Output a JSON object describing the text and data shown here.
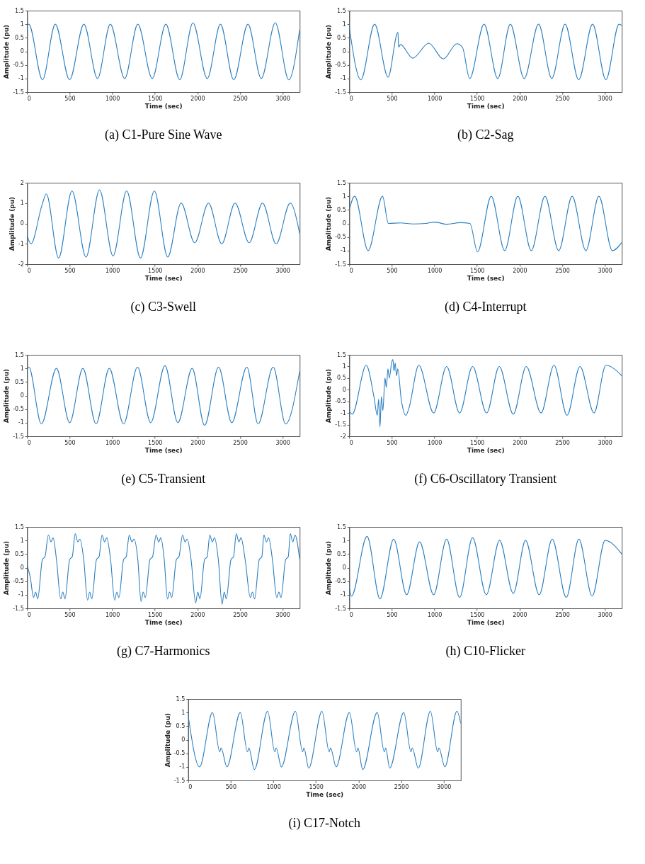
{
  "chart_data": [
    {
      "type": "line",
      "title": "(a) C1-Pure Sine Wave",
      "xlabel": "Time (sec)",
      "ylabel": "Amplitude (pu)",
      "xlim": [
        0,
        3200
      ],
      "xticks": [
        0,
        500,
        1000,
        1500,
        2000,
        2500,
        3000
      ],
      "ylim": [
        -1.5,
        1.5
      ],
      "yticks": [
        -1.5,
        -1,
        -0.5,
        0,
        0.5,
        1,
        1.5
      ],
      "series": [
        {
          "color": "#2a7fc0",
          "x": [
            0,
            20,
            181,
            331,
            499,
            667,
            827,
            977,
            1146,
            1300,
            1469,
            1629,
            1792,
            1947,
            2115,
            2270,
            2426,
            2593,
            2749,
            2914,
            3072,
            3200
          ],
          "values": [
            0.95,
            1.0,
            -1.05,
            1.0,
            -1.05,
            1.0,
            -1.0,
            1.0,
            -1.0,
            1.0,
            -1.0,
            1.0,
            -1.05,
            1.05,
            -1.0,
            1.0,
            -1.05,
            1.0,
            -1.0,
            1.05,
            -1.05,
            0.8
          ]
        }
      ]
    },
    {
      "type": "line",
      "title": "(b) C2-Sag",
      "xlabel": "Time (sec)",
      "ylabel": "Amplitude (pu)",
      "xlim": [
        0,
        3200
      ],
      "xticks": [
        0,
        500,
        1000,
        1500,
        2000,
        2500,
        3000
      ],
      "ylim": [
        -1.5,
        1.5
      ],
      "yticks": [
        -1.5,
        -1,
        -0.5,
        0,
        0.5,
        1,
        1.5
      ],
      "series": [
        {
          "color": "#2a7fc0",
          "x": [
            0,
            137,
            298,
            456,
            572,
            580,
            600,
            746,
            933,
            1104,
            1264,
            1329,
            1414,
            1583,
            1744,
            1891,
            2054,
            2223,
            2378,
            2534,
            2694,
            2857,
            3013,
            3168,
            3200
          ],
          "values": [
            0.9,
            -1.05,
            1.0,
            -0.95,
            0.7,
            0.15,
            0.25,
            -0.25,
            0.3,
            -0.28,
            0.28,
            0.15,
            -1.0,
            1.0,
            -1.0,
            1.0,
            -1.0,
            1.0,
            -1.0,
            1.0,
            -1.05,
            1.0,
            -1.05,
            1.0,
            0.95
          ]
        }
      ]
    },
    {
      "type": "line",
      "title": "(c) C3-Swell",
      "xlabel": "Time (sec)",
      "ylabel": "Amplitude (pu)",
      "xlim": [
        0,
        3200
      ],
      "xticks": [
        0,
        500,
        1000,
        1500,
        2000,
        2500,
        3000
      ],
      "ylim": [
        -2,
        2
      ],
      "yticks": [
        -2,
        -1,
        0,
        1,
        2
      ],
      "series": [
        {
          "color": "#2a7fc0",
          "x": [
            0,
            46,
            175,
            226,
            370,
            527,
            692,
            850,
            1009,
            1169,
            1331,
            1494,
            1651,
            1808,
            1968,
            2130,
            2285,
            2442,
            2607,
            2764,
            2924,
            3089,
            3200
          ],
          "values": [
            -0.6,
            -1.0,
            0.9,
            1.45,
            -1.7,
            1.6,
            -1.65,
            1.65,
            -1.6,
            1.6,
            -1.7,
            1.6,
            -1.65,
            1.0,
            -0.95,
            1.0,
            -1.0,
            1.0,
            -0.95,
            1.0,
            -1.0,
            1.0,
            -0.5
          ]
        }
      ]
    },
    {
      "type": "line",
      "title": "(d) C4-Interrupt",
      "xlabel": "Time (sec)",
      "ylabel": "Amplitude (pu)",
      "xlim": [
        0,
        3200
      ],
      "xticks": [
        0,
        500,
        1000,
        1500,
        2000,
        2500,
        3000
      ],
      "ylim": [
        -1.5,
        1.5
      ],
      "yticks": [
        -1.5,
        -1,
        -0.5,
        0,
        0.5,
        1,
        1.5
      ],
      "series": [
        {
          "color": "#2a7fc0",
          "x": [
            0,
            64,
            222,
            391,
            460,
            600,
            750,
            900,
            1000,
            1150,
            1300,
            1417,
            1506,
            1667,
            1825,
            1979,
            2137,
            2298,
            2459,
            2617,
            2778,
            2931,
            3089,
            3200
          ],
          "values": [
            0.5,
            1.0,
            -1.0,
            1.0,
            0.0,
            0.02,
            -0.02,
            0.0,
            0.05,
            -0.03,
            0.03,
            0.0,
            -1.05,
            1.0,
            -1.0,
            1.0,
            -1.0,
            1.0,
            -1.0,
            1.0,
            -1.0,
            1.0,
            -1.0,
            -0.7
          ]
        }
      ]
    },
    {
      "type": "line",
      "title": "(e) C5-Transient",
      "xlabel": "Time (sec)",
      "ylabel": "Amplitude (pu)",
      "xlim": [
        0,
        3200
      ],
      "xticks": [
        0,
        500,
        1000,
        1500,
        2000,
        2500,
        3000
      ],
      "ylim": [
        -1.5,
        1.5
      ],
      "yticks": [
        -1.5,
        -1,
        -0.5,
        0,
        0.5,
        1,
        1.5
      ],
      "series": [
        {
          "color": "#2a7fc0",
          "x": [
            0,
            20,
            168,
            345,
            500,
            655,
            810,
            965,
            1133,
            1296,
            1451,
            1619,
            1770,
            1938,
            2084,
            2248,
            2403,
            2580,
            2712,
            2889,
            3035,
            3200
          ],
          "values": [
            0.95,
            1.05,
            -1.05,
            1.0,
            -1.0,
            1.0,
            -1.05,
            1.0,
            -1.05,
            1.05,
            -1.0,
            1.1,
            -1.0,
            1.0,
            -1.1,
            1.05,
            -1.0,
            1.05,
            -1.05,
            1.05,
            -1.05,
            0.9
          ]
        }
      ]
    },
    {
      "type": "line",
      "title": "(f) C6-Oscillatory Transient",
      "xlabel": "Time (sec)",
      "ylabel": "Amplitude (pu)",
      "xlim": [
        0,
        3200
      ],
      "xticks": [
        0,
        500,
        1000,
        1500,
        2000,
        2500,
        3000
      ],
      "ylim": [
        -2,
        1.5
      ],
      "yticks": [
        -2,
        -1.5,
        -1,
        -0.5,
        0,
        0.5,
        1,
        1.5
      ],
      "series": [
        {
          "color": "#2a7fc0",
          "x": [
            0,
            35,
            200,
            290,
            330,
            345,
            361,
            378,
            395,
            420,
            435,
            455,
            470,
            500,
            513,
            525,
            540,
            555,
            570,
            610,
            665,
            700,
            817,
            991,
            1143,
            1296,
            1448,
            1613,
            1761,
            1926,
            2078,
            2252,
            2404,
            2557,
            2709,
            2874,
            3013,
            3200
          ],
          "values": [
            -0.9,
            -1.05,
            1.05,
            -0.3,
            -1.1,
            -0.4,
            -1.6,
            -0.3,
            -0.9,
            0.5,
            0.1,
            0.9,
            0.5,
            1.2,
            1.3,
            0.8,
            1.15,
            0.6,
            0.9,
            -0.4,
            -1.1,
            -0.8,
            1.05,
            -1.0,
            1.0,
            -1.0,
            1.0,
            -1.0,
            1.0,
            -1.05,
            1.0,
            -1.0,
            1.05,
            -1.1,
            1.0,
            -1.0,
            1.05,
            0.6
          ]
        }
      ]
    },
    {
      "type": "line",
      "title": "(g) C7-Harmonics",
      "xlabel": "Time (sec)",
      "ylabel": "Amplitude (pu)",
      "xlim": [
        0,
        3200
      ],
      "xticks": [
        0,
        500,
        1000,
        1500,
        2000,
        2500,
        3000
      ],
      "ylim": [
        -1.5,
        1.5
      ],
      "yticks": [
        -1.5,
        -1,
        -0.5,
        0,
        0.5,
        1,
        1.5
      ],
      "series": [
        {
          "color": "#2a7fc0",
          "x": [
            0,
            40,
            75,
            100,
            125,
            180,
            210,
            250,
            280,
            305,
            345,
            395,
            420,
            445,
            500,
            530,
            565,
            595,
            620,
            665,
            710,
            735,
            760,
            815,
            845,
            880,
            910,
            935,
            980,
            1028,
            1053,
            1078,
            1133,
            1163,
            1200,
            1230,
            1255,
            1300,
            1338,
            1363,
            1388,
            1443,
            1473,
            1515,
            1545,
            1570,
            1610,
            1648,
            1673,
            1698,
            1753,
            1783,
            1825,
            1855,
            1880,
            1925,
            1979,
            2004,
            2029,
            2084,
            2114,
            2145,
            2175,
            2200,
            2245,
            2289,
            2314,
            2339,
            2394,
            2424,
            2456,
            2486,
            2511,
            2560,
            2621,
            2646,
            2671,
            2726,
            2756,
            2780,
            2810,
            2835,
            2880,
            2931,
            2956,
            2981,
            3036,
            3066,
            3090,
            3120,
            3145,
            3200
          ],
          "values": [
            0.1,
            -0.4,
            -1.1,
            -0.9,
            -1.15,
            0.3,
            0.4,
            1.2,
            0.95,
            1.1,
            0.3,
            -1.15,
            -0.9,
            -1.15,
            0.3,
            0.4,
            1.25,
            0.95,
            1.05,
            0.3,
            -1.2,
            -0.9,
            -1.15,
            0.3,
            0.4,
            1.2,
            0.95,
            1.1,
            0.3,
            -1.2,
            -0.9,
            -1.1,
            0.3,
            0.4,
            1.2,
            0.95,
            1.05,
            0.3,
            -1.25,
            -0.9,
            -1.1,
            0.3,
            0.4,
            1.2,
            0.95,
            1.1,
            0.3,
            -1.15,
            -0.9,
            -1.1,
            0.3,
            0.4,
            1.2,
            0.95,
            1.05,
            0.3,
            -1.3,
            -0.9,
            -1.15,
            0.3,
            0.4,
            1.2,
            0.95,
            1.1,
            0.3,
            -1.35,
            -0.9,
            -1.15,
            0.3,
            0.4,
            1.25,
            0.95,
            1.1,
            0.3,
            -1.1,
            -0.9,
            -1.15,
            0.3,
            0.4,
            1.2,
            0.95,
            1.1,
            0.3,
            -1.1,
            -0.9,
            -1.1,
            0.3,
            0.4,
            1.25,
            0.95,
            1.2,
            0.3
          ]
        }
      ]
    },
    {
      "type": "line",
      "title": "(h) C10-Flicker",
      "xlabel": "Time (sec)",
      "ylabel": "Amplitude (pu)",
      "xlim": [
        0,
        3200
      ],
      "xticks": [
        0,
        500,
        1000,
        1500,
        2000,
        2500,
        3000
      ],
      "ylim": [
        -1.5,
        1.5
      ],
      "yticks": [
        -1.5,
        -1,
        -0.5,
        0,
        0.5,
        1,
        1.5
      ],
      "series": [
        {
          "color": "#2a7fc0",
          "x": [
            0,
            26,
            209,
            361,
            522,
            674,
            826,
            991,
            1143,
            1296,
            1448,
            1609,
            1765,
            1926,
            2070,
            2230,
            2383,
            2548,
            2696,
            2852,
            3004,
            3200
          ],
          "values": [
            -0.7,
            -1.05,
            1.15,
            -1.15,
            1.05,
            -1.0,
            0.95,
            -1.0,
            1.05,
            -1.1,
            1.1,
            -1.0,
            1.0,
            -0.95,
            1.0,
            -1.0,
            1.05,
            -1.1,
            1.05,
            -1.05,
            1.0,
            0.5
          ]
        }
      ]
    },
    {
      "type": "line",
      "title": "(i) C17-Notch",
      "xlabel": "Time (sec)",
      "ylabel": "Amplitude (pu)",
      "xlim": [
        0,
        3200
      ],
      "xticks": [
        0,
        500,
        1000,
        1500,
        2000,
        2500,
        3000
      ],
      "ylim": [
        -1.5,
        1.5
      ],
      "yticks": [
        -1.5,
        -1,
        -0.5,
        0,
        0.5,
        1,
        1.5
      ],
      "series": [
        {
          "color": "#2a7fc0",
          "x": [
            0,
            134,
            286,
            371,
            386,
            455,
            612,
            697,
            712,
            777,
            933,
            1018,
            1033,
            1094,
            1259,
            1344,
            1359,
            1415,
            1571,
            1656,
            1671,
            1737,
            1893,
            1978,
            1993,
            2049,
            2219,
            2304,
            2319,
            2366,
            2531,
            2616,
            2631,
            2701,
            2844,
            2929,
            2944,
            3013,
            3156,
            3200
          ],
          "values": [
            0.9,
            -1.0,
            1.0,
            -0.45,
            -0.3,
            -1.0,
            1.0,
            -0.45,
            -0.3,
            -1.1,
            1.05,
            -0.45,
            -0.3,
            -1.0,
            1.05,
            -0.45,
            -0.3,
            -1.05,
            1.05,
            -0.45,
            -0.3,
            -1.0,
            1.0,
            -0.45,
            -0.3,
            -1.1,
            1.0,
            -0.45,
            -0.3,
            -1.05,
            1.0,
            -0.45,
            -0.3,
            -1.05,
            1.05,
            -0.45,
            -0.3,
            -1.0,
            1.05,
            0.6
          ]
        }
      ]
    }
  ]
}
